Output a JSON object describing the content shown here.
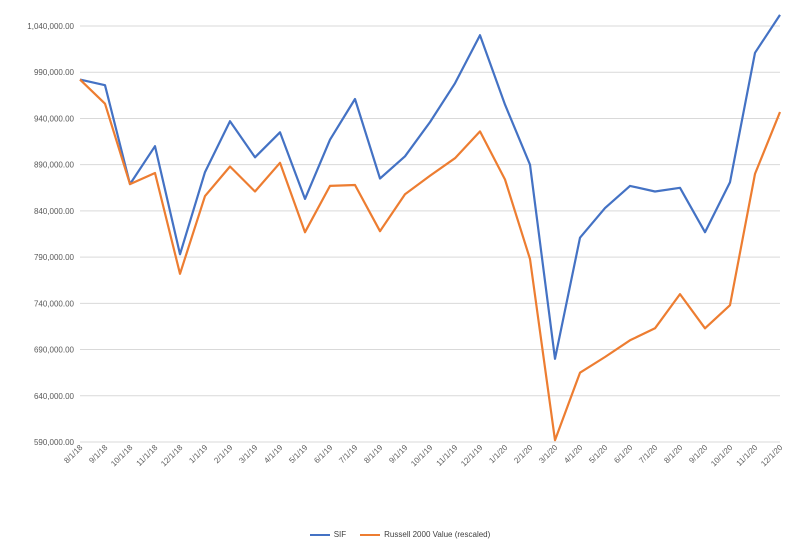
{
  "chart_data": {
    "type": "line",
    "title": "",
    "xlabel": "",
    "ylabel": "",
    "categories": [
      "8/1/18",
      "9/1/18",
      "10/1/18",
      "11/1/18",
      "12/1/18",
      "1/1/19",
      "2/1/19",
      "3/1/19",
      "4/1/19",
      "5/1/19",
      "6/1/19",
      "7/1/19",
      "8/1/19",
      "9/1/19",
      "10/1/19",
      "11/1/19",
      "12/1/19",
      "1/1/20",
      "2/1/20",
      "3/1/20",
      "4/1/20",
      "5/1/20",
      "6/1/20",
      "7/1/20",
      "8/1/20",
      "9/1/20",
      "10/1/20",
      "11/1/20",
      "12/1/20"
    ],
    "ylim": [
      590000,
      1040000
    ],
    "yticks": [
      590000,
      640000,
      690000,
      740000,
      790000,
      840000,
      890000,
      940000,
      990000,
      1040000
    ],
    "ytick_labels": [
      "590,000.00",
      "640,000.00",
      "690,000.00",
      "740,000.00",
      "790,000.00",
      "840,000.00",
      "890,000.00",
      "940,000.00",
      "990,000.00",
      "1,040,000.00"
    ],
    "grid": true,
    "legend_position": "bottom",
    "series": [
      {
        "name": "SIF",
        "color": "#4472C4",
        "values": [
          982000,
          976000,
          869000,
          910000,
          793000,
          882000,
          937000,
          898000,
          925000,
          853000,
          917000,
          961000,
          875000,
          899000,
          936000,
          978000,
          1030000,
          955000,
          890000,
          680000,
          811000,
          843000,
          867000,
          861000,
          865000,
          817000,
          871000,
          1011000,
          1052000
        ]
      },
      {
        "name": "Russell 2000 Value (rescaled)",
        "color": "#ED7D31",
        "values": [
          982000,
          956000,
          869000,
          881000,
          772000,
          856000,
          888000,
          861000,
          892000,
          817000,
          867000,
          868000,
          818000,
          858000,
          878000,
          897000,
          926000,
          874000,
          788000,
          592000,
          665000,
          682000,
          700000,
          713000,
          750000,
          713000,
          738000,
          880000,
          947000
        ]
      }
    ]
  }
}
